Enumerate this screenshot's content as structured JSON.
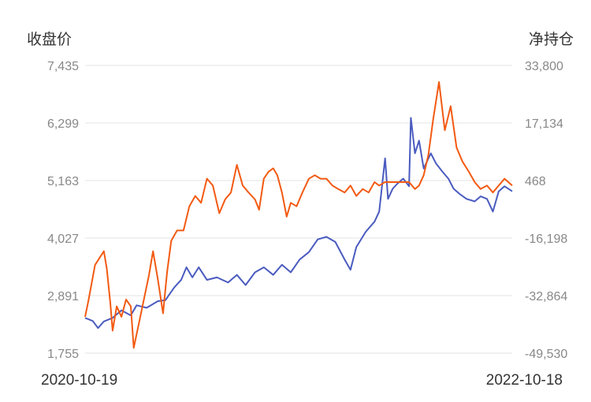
{
  "chart_data": {
    "type": "line",
    "left_axis_title": "收盘价",
    "right_axis_title": "净持仓",
    "y_left": {
      "ticks": [
        "7,435",
        "6,299",
        "5,163",
        "4,027",
        "2,891",
        "1,755"
      ],
      "range": [
        1755,
        7435
      ]
    },
    "y_right": {
      "ticks": [
        "33,800",
        "17,134",
        "468",
        "-16,198",
        "-32,864",
        "-49,530"
      ],
      "range": [
        -49530,
        33800
      ]
    },
    "x_start_label": "2020-10-19",
    "x_end_label": "2022-10-18",
    "x_range": [
      "2020-10-19",
      "2022-10-18"
    ],
    "grid": true,
    "colors": {
      "close_price": "#4a5bbf",
      "net_position": "#f25a12"
    },
    "series": [
      {
        "axis": "left",
        "points": [
          [
            "2020-10-19",
            2450
          ],
          [
            "2020-11-01",
            2390
          ],
          [
            "2020-11-10",
            2250
          ],
          [
            "2020-11-20",
            2380
          ],
          [
            "2020-12-05",
            2450
          ],
          [
            "2020-12-20",
            2600
          ],
          [
            "2021-01-05",
            2500
          ],
          [
            "2021-01-15",
            2700
          ],
          [
            "2021-02-01",
            2650
          ],
          [
            "2021-02-20",
            2780
          ],
          [
            "2021-03-05",
            2800
          ],
          [
            "2021-03-20",
            3050
          ],
          [
            "2021-04-01",
            3200
          ],
          [
            "2021-04-10",
            3450
          ],
          [
            "2021-04-20",
            3250
          ],
          [
            "2021-05-01",
            3450
          ],
          [
            "2021-05-15",
            3200
          ],
          [
            "2021-06-01",
            3250
          ],
          [
            "2021-06-20",
            3150
          ],
          [
            "2021-07-05",
            3300
          ],
          [
            "2021-07-20",
            3100
          ],
          [
            "2021-08-05",
            3350
          ],
          [
            "2021-08-20",
            3450
          ],
          [
            "2021-09-05",
            3300
          ],
          [
            "2021-09-20",
            3500
          ],
          [
            "2021-10-05",
            3350
          ],
          [
            "2021-10-20",
            3600
          ],
          [
            "2021-11-05",
            3750
          ],
          [
            "2021-11-20",
            4000
          ],
          [
            "2021-12-05",
            4050
          ],
          [
            "2021-12-20",
            3950
          ],
          [
            "2022-01-05",
            3600
          ],
          [
            "2022-01-15",
            3400
          ],
          [
            "2022-01-25",
            3850
          ],
          [
            "2022-02-10",
            4150
          ],
          [
            "2022-02-25",
            4350
          ],
          [
            "2022-03-05",
            4550
          ],
          [
            "2022-03-15",
            5600
          ],
          [
            "2022-03-20",
            4800
          ],
          [
            "2022-03-28",
            5000
          ],
          [
            "2022-04-05",
            5100
          ],
          [
            "2022-04-15",
            5200
          ],
          [
            "2022-04-25",
            5050
          ],
          [
            "2022-04-28",
            6400
          ],
          [
            "2022-05-05",
            5700
          ],
          [
            "2022-05-12",
            5950
          ],
          [
            "2022-05-20",
            5400
          ],
          [
            "2022-06-01",
            5700
          ],
          [
            "2022-06-10",
            5500
          ],
          [
            "2022-06-20",
            5350
          ],
          [
            "2022-07-01",
            5200
          ],
          [
            "2022-07-10",
            5000
          ],
          [
            "2022-07-20",
            4900
          ],
          [
            "2022-08-01",
            4800
          ],
          [
            "2022-08-15",
            4750
          ],
          [
            "2022-08-25",
            4850
          ],
          [
            "2022-09-05",
            4800
          ],
          [
            "2022-09-15",
            4550
          ],
          [
            "2022-09-25",
            4950
          ],
          [
            "2022-10-05",
            5050
          ],
          [
            "2022-10-18",
            4950
          ]
        ]
      },
      {
        "axis": "right",
        "points": [
          [
            "2020-10-19",
            -39000
          ],
          [
            "2020-10-25",
            -34000
          ],
          [
            "2020-11-05",
            -24000
          ],
          [
            "2020-11-20",
            -20000
          ],
          [
            "2020-11-25",
            -25000
          ],
          [
            "2020-12-01",
            -35000
          ],
          [
            "2020-12-05",
            -43000
          ],
          [
            "2020-12-12",
            -36000
          ],
          [
            "2020-12-20",
            -39000
          ],
          [
            "2020-12-28",
            -34000
          ],
          [
            "2021-01-05",
            -36000
          ],
          [
            "2021-01-10",
            -48000
          ],
          [
            "2021-01-20",
            -40000
          ],
          [
            "2021-02-05",
            -27000
          ],
          [
            "2021-02-12",
            -20000
          ],
          [
            "2021-02-20",
            -28000
          ],
          [
            "2021-03-01",
            -38000
          ],
          [
            "2021-03-08",
            -26000
          ],
          [
            "2021-03-15",
            -17000
          ],
          [
            "2021-03-25",
            -14000
          ],
          [
            "2021-04-05",
            -14000
          ],
          [
            "2021-04-15",
            -7000
          ],
          [
            "2021-04-25",
            -4000
          ],
          [
            "2021-05-05",
            -6000
          ],
          [
            "2021-05-15",
            1000
          ],
          [
            "2021-05-25",
            -1000
          ],
          [
            "2021-06-05",
            -9000
          ],
          [
            "2021-06-15",
            -5000
          ],
          [
            "2021-06-25",
            -3000
          ],
          [
            "2021-07-05",
            5000
          ],
          [
            "2021-07-15",
            -1000
          ],
          [
            "2021-07-25",
            -3000
          ],
          [
            "2021-08-05",
            -5000
          ],
          [
            "2021-08-12",
            -8000
          ],
          [
            "2021-08-20",
            1000
          ],
          [
            "2021-08-28",
            3000
          ],
          [
            "2021-09-05",
            4000
          ],
          [
            "2021-09-12",
            2000
          ],
          [
            "2021-09-20",
            -3000
          ],
          [
            "2021-09-28",
            -10000
          ],
          [
            "2021-10-05",
            -6000
          ],
          [
            "2021-10-15",
            -7000
          ],
          [
            "2021-10-25",
            -3000
          ],
          [
            "2021-11-05",
            1000
          ],
          [
            "2021-11-15",
            2000
          ],
          [
            "2021-11-25",
            1000
          ],
          [
            "2021-12-05",
            1000
          ],
          [
            "2021-12-15",
            -1000
          ],
          [
            "2021-12-25",
            -2000
          ],
          [
            "2022-01-05",
            -3000
          ],
          [
            "2022-01-15",
            -1000
          ],
          [
            "2022-01-25",
            -4000
          ],
          [
            "2022-02-05",
            -2000
          ],
          [
            "2022-02-15",
            -3000
          ],
          [
            "2022-02-25",
            0
          ],
          [
            "2022-03-05",
            -1000
          ],
          [
            "2022-03-15",
            0
          ],
          [
            "2022-03-25",
            0
          ],
          [
            "2022-04-05",
            0
          ],
          [
            "2022-04-15",
            0
          ],
          [
            "2022-04-25",
            0
          ],
          [
            "2022-05-05",
            -2000
          ],
          [
            "2022-05-12",
            -1000
          ],
          [
            "2022-05-20",
            2000
          ],
          [
            "2022-05-28",
            8000
          ],
          [
            "2022-06-05",
            18000
          ],
          [
            "2022-06-15",
            29000
          ],
          [
            "2022-06-25",
            15000
          ],
          [
            "2022-07-05",
            22000
          ],
          [
            "2022-07-15",
            10000
          ],
          [
            "2022-07-25",
            6000
          ],
          [
            "2022-08-05",
            3000
          ],
          [
            "2022-08-15",
            0
          ],
          [
            "2022-08-25",
            -2000
          ],
          [
            "2022-09-05",
            -1000
          ],
          [
            "2022-09-15",
            -3000
          ],
          [
            "2022-09-25",
            -1000
          ],
          [
            "2022-10-05",
            1000
          ],
          [
            "2022-10-18",
            -1000
          ]
        ]
      }
    ]
  }
}
